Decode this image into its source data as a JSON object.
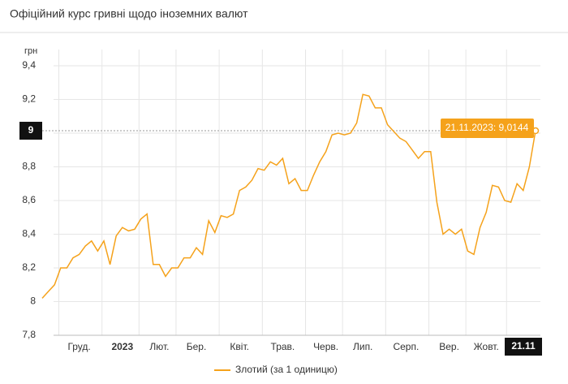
{
  "chart_data": {
    "type": "line",
    "title": "Офіційний курс гривні щодо іноземних валют",
    "y_label": "грн",
    "categories": [
      null,
      null,
      null,
      null,
      null,
      null,
      "Груд.",
      null,
      null,
      null,
      null,
      null,
      null,
      "2023",
      null,
      null,
      null,
      null,
      null,
      "Лют.",
      null,
      null,
      null,
      null,
      null,
      "Бер.",
      null,
      null,
      null,
      null,
      null,
      null,
      "Квіт.",
      null,
      null,
      null,
      null,
      null,
      null,
      "Трав.",
      null,
      null,
      null,
      null,
      null,
      null,
      "Черв.",
      null,
      null,
      null,
      null,
      null,
      "Лип.",
      null,
      null,
      null,
      null,
      null,
      null,
      "Серп.",
      null,
      null,
      null,
      null,
      null,
      null,
      "Вер.",
      null,
      null,
      null,
      null,
      null,
      "Жовт.",
      null,
      null,
      null,
      null,
      null,
      null,
      null,
      "21.11"
    ],
    "series": [
      {
        "name": "Злотий (за 1 одиницю)",
        "color": "#f5a21b",
        "values": [
          8.02,
          8.06,
          8.1,
          8.2,
          8.2,
          8.26,
          8.28,
          8.33,
          8.36,
          8.3,
          8.36,
          8.22,
          8.39,
          8.44,
          8.42,
          8.43,
          8.49,
          8.52,
          8.22,
          8.22,
          8.15,
          8.2,
          8.2,
          8.26,
          8.26,
          8.32,
          8.28,
          8.48,
          8.41,
          8.51,
          8.5,
          8.52,
          8.66,
          8.68,
          8.72,
          8.79,
          8.78,
          8.83,
          8.81,
          8.85,
          8.7,
          8.73,
          8.66,
          8.66,
          8.75,
          8.83,
          8.89,
          8.99,
          9.0,
          8.99,
          9.0,
          9.06,
          9.23,
          9.22,
          9.15,
          9.15,
          9.05,
          9.01,
          8.97,
          8.95,
          8.9,
          8.85,
          8.89,
          8.89,
          8.59,
          8.4,
          8.43,
          8.4,
          8.43,
          8.3,
          8.28,
          8.44,
          8.53,
          8.69,
          8.68,
          8.6,
          8.59,
          8.7,
          8.66,
          8.8,
          9.0144
        ]
      }
    ],
    "tooltip": "21.11.2023: 9,0144",
    "ylim": [
      7.8,
      9.4
    ],
    "yticks": [
      {
        "value": 7.8,
        "label": "7,8"
      },
      8,
      {
        "value": 8.2,
        "label": "8,2"
      },
      {
        "value": 8.4,
        "label": "8,4"
      },
      {
        "value": 8.6,
        "label": "8,6"
      },
      {
        "value": 8.8,
        "label": "8,8"
      },
      9,
      {
        "value": 9.2,
        "label": "9,2"
      },
      {
        "value": 9.4,
        "label": "9,4"
      }
    ],
    "grid": true
  }
}
